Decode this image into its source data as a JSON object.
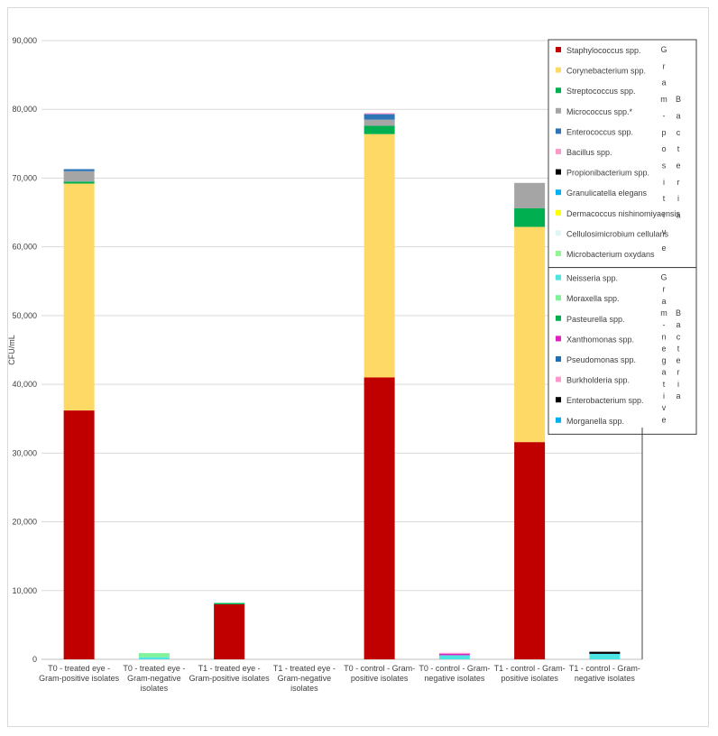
{
  "chart_data": {
    "type": "bar",
    "stacked": true,
    "ylabel": "CFU/mL",
    "ylim": [
      0,
      90000
    ],
    "yticks": [
      0,
      10000,
      20000,
      30000,
      40000,
      50000,
      60000,
      70000,
      80000,
      90000
    ],
    "ytick_labels": [
      "0",
      "10,000",
      "20,000",
      "30,000",
      "40,000",
      "50,000",
      "60,000",
      "70,000",
      "80,000",
      "90,000"
    ],
    "grid": true,
    "legend_position": "top-right",
    "categories": [
      [
        "T0 - treated eye -",
        "Gram-positive isolates"
      ],
      [
        "T0 - treated eye -",
        "Gram-negative",
        "isolates"
      ],
      [
        "T1 - treated eye -",
        "Gram-positive isolates"
      ],
      [
        "T1 - treated eye -",
        "Gram-negative",
        "isolates"
      ],
      [
        "T0 - control - Gram-",
        "positive isolates"
      ],
      [
        "T0 - control - Gram-",
        "negative isolates"
      ],
      [
        "T1 - control - Gram-",
        "positive isolates"
      ],
      [
        "T1 - control - Gram-",
        "negative isolates"
      ]
    ],
    "legend_groups": [
      {
        "side_label": [
          "G",
          "r",
          "a",
          "m",
          "-",
          "p",
          "o",
          "s",
          "i",
          "t",
          "i",
          "v",
          "e"
        ],
        "side_label2": [
          "B",
          "a",
          "c",
          "t",
          "e",
          "r",
          "i",
          "a"
        ],
        "series": [
          {
            "name": "Staphylococcus spp.",
            "color": "#c00000",
            "values": [
              36200,
              0,
              8000,
              0,
              41000,
              0,
              31600,
              0
            ]
          },
          {
            "name": "Corynebacterium spp.",
            "color": "#ffd966",
            "values": [
              33000,
              0,
              0,
              0,
              35400,
              0,
              31300,
              0
            ]
          },
          {
            "name": "Streptococcus spp.",
            "color": "#00b050",
            "values": [
              300,
              0,
              200,
              0,
              1200,
              0,
              2700,
              0
            ]
          },
          {
            "name": "Micrococcus spp.*",
            "color": "#a5a5a5",
            "values": [
              1500,
              0,
              0,
              0,
              900,
              0,
              3700,
              0
            ]
          },
          {
            "name": "Enterococcus spp.",
            "color": "#2e75b6",
            "values": [
              300,
              0,
              0,
              0,
              800,
              0,
              0,
              0
            ]
          },
          {
            "name": "Bacillus spp.",
            "color": "#ff99cc",
            "values": [
              0,
              0,
              0,
              0,
              150,
              0,
              0,
              0
            ]
          },
          {
            "name": "Propionibacterium spp.",
            "color": "#000000",
            "values": [
              0,
              0,
              0,
              0,
              0,
              0,
              0,
              0
            ]
          },
          {
            "name": "Granulicatella elegans",
            "color": "#00b0f0",
            "values": [
              0,
              0,
              0,
              0,
              0,
              0,
              0,
              0
            ]
          },
          {
            "name": "Dermacoccus nishinomiyaensis",
            "color": "#ffff00",
            "values": [
              0,
              0,
              0,
              0,
              0,
              0,
              0,
              0
            ]
          },
          {
            "name": "Cellulosimicrobium cellulans",
            "color": "#ddf6f6",
            "values": [
              0,
              0,
              0,
              0,
              0,
              0,
              0,
              0
            ]
          },
          {
            "name": "Microbacterium oxydans",
            "color": "#92f792",
            "values": [
              0,
              0,
              0,
              0,
              0,
              0,
              0,
              0
            ]
          }
        ]
      },
      {
        "side_label": [
          "G",
          "r",
          "a",
          "m",
          "-",
          "n",
          "e",
          "g",
          "a",
          "t",
          "i",
          "v",
          "e"
        ],
        "side_label2": [
          "B",
          "a",
          "c",
          "t",
          "e",
          "r",
          "i",
          "a"
        ],
        "series": [
          {
            "name": "Neisseria spp.",
            "color": "#4de4e4",
            "values": [
              0,
              300,
              0,
              0,
              0,
              600,
              0,
              800
            ]
          },
          {
            "name": "Moraxella spp.",
            "color": "#7ff29a",
            "values": [
              0,
              600,
              0,
              0,
              0,
              0,
              0,
              0
            ]
          },
          {
            "name": "Pasteurella spp.",
            "color": "#00b050",
            "values": [
              0,
              0,
              0,
              0,
              0,
              0,
              0,
              0
            ]
          },
          {
            "name": "Xanthomonas spp.",
            "color": "#e020c0",
            "values": [
              0,
              0,
              0,
              0,
              0,
              200,
              0,
              0
            ]
          },
          {
            "name": "Pseudomonas spp.",
            "color": "#1f6fb4",
            "values": [
              0,
              0,
              0,
              0,
              0,
              0,
              0,
              0
            ]
          },
          {
            "name": "Burkholderia spp.",
            "color": "#ff99cc",
            "values": [
              0,
              0,
              0,
              0,
              0,
              150,
              0,
              0
            ]
          },
          {
            "name": "Enterobacterium spp.",
            "color": "#000000",
            "values": [
              0,
              0,
              0,
              0,
              0,
              0,
              0,
              300
            ]
          },
          {
            "name": "Morganella spp.",
            "color": "#00b0f0",
            "values": [
              0,
              0,
              0,
              0,
              0,
              0,
              0,
              0
            ]
          }
        ]
      }
    ]
  }
}
